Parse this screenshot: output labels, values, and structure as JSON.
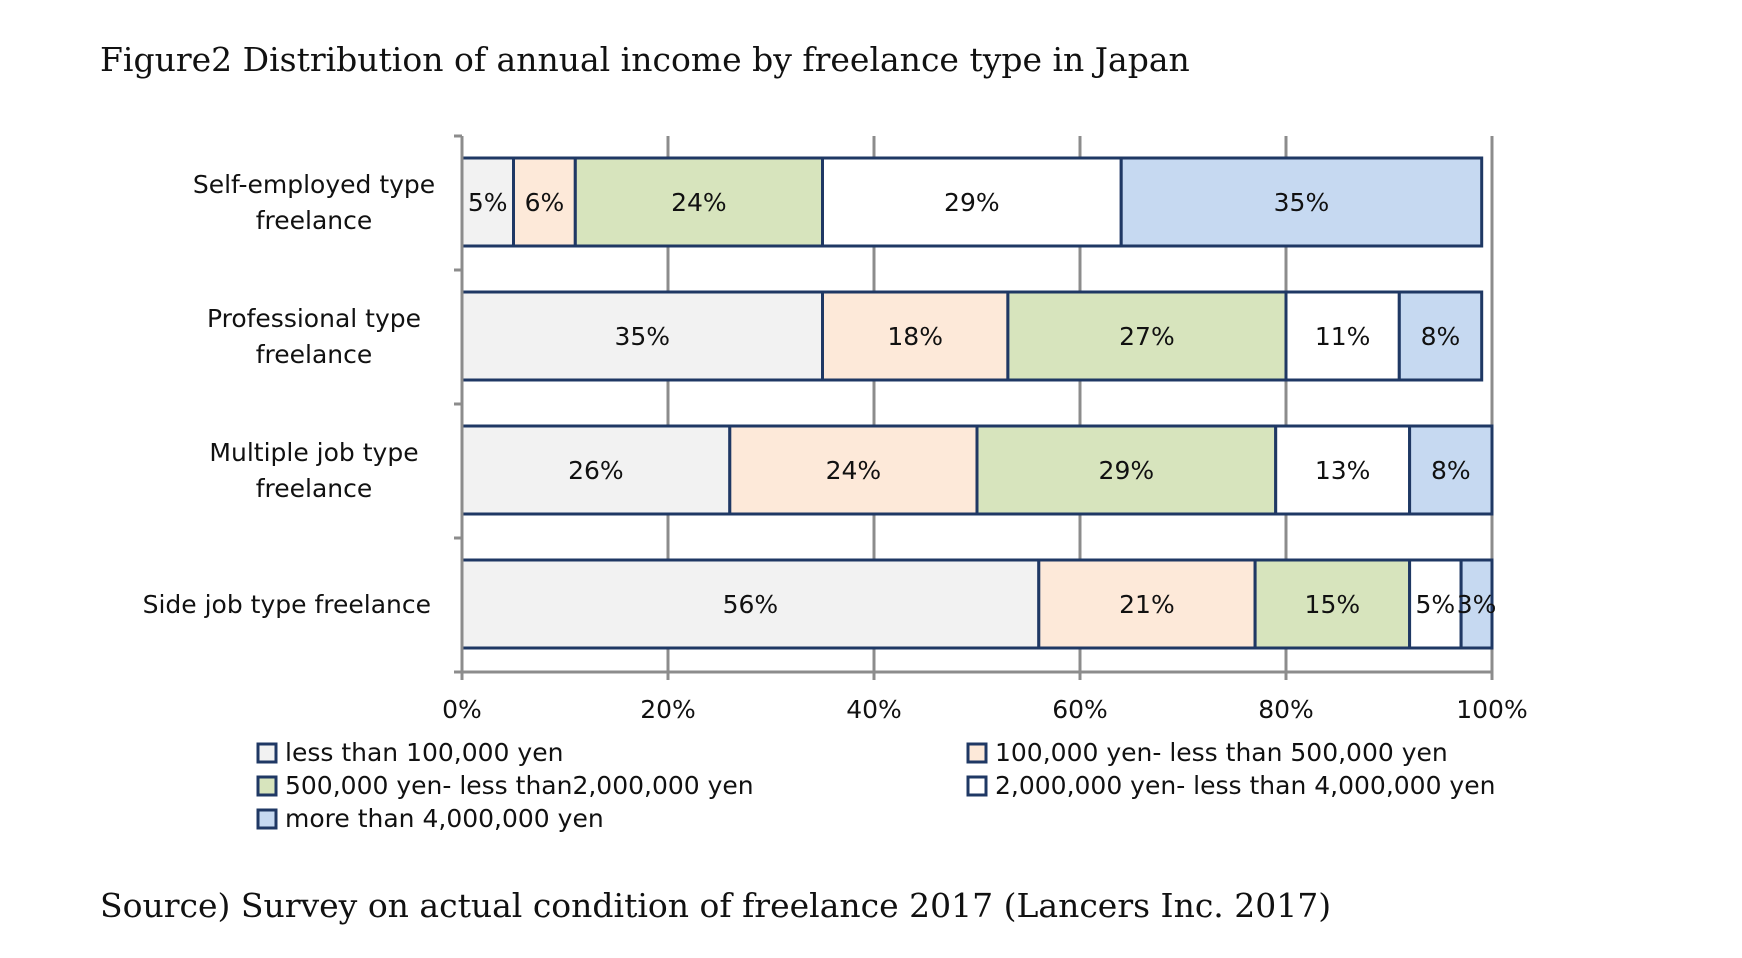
{
  "title": "Figure2 Distribution of annual income by freelance type in Japan",
  "source": "Source) Survey on actual condition of freelance 2017 (Lancers Inc. 2017)",
  "chart_data": {
    "type": "bar",
    "orientation": "horizontal",
    "stacked": true,
    "percent": true,
    "title": "Figure2 Distribution of annual income by freelance type in Japan",
    "categories": [
      [
        "Self-employed type",
        "freelance"
      ],
      [
        "Professional type",
        "freelance"
      ],
      [
        "Multiple job type",
        "freelance"
      ],
      [
        "Side job type freelance"
      ]
    ],
    "series": [
      {
        "name": "less than 100,000 yen",
        "color": "#f2f2f2",
        "values": [
          5,
          35,
          26,
          56
        ],
        "labels": [
          "5%",
          "35%",
          "26%",
          "56%"
        ]
      },
      {
        "name": "100,000 yen- less than 500,000 yen",
        "color": "#fde9d9",
        "values": [
          6,
          18,
          24,
          21
        ],
        "labels": [
          "6%",
          "18%",
          "24%",
          "21%"
        ]
      },
      {
        "name": "500,000 yen- less than2,000,000 yen",
        "color": "#d7e4bd",
        "values": [
          24,
          27,
          29,
          15
        ],
        "labels": [
          "24%",
          "27%",
          "29%",
          "15%"
        ]
      },
      {
        "name": "2,000,000 yen- less than 4,000,000 yen",
        "color": "#ffffff",
        "values": [
          29,
          11,
          13,
          5
        ],
        "labels": [
          "29%",
          "11%",
          "13%",
          "5%"
        ]
      },
      {
        "name": "more than 4,000,000 yen",
        "color": "#c6d9f1",
        "values": [
          35,
          8,
          8,
          3
        ],
        "labels": [
          "35%",
          "8%",
          "8%",
          "3%"
        ]
      }
    ],
    "xlim": [
      0,
      100
    ],
    "xticks": [
      "0%",
      "20%",
      "40%",
      "60%",
      "80%",
      "100%"
    ],
    "grid": true,
    "bar_border_color": "#1f3864",
    "legend_position": "bottom"
  }
}
